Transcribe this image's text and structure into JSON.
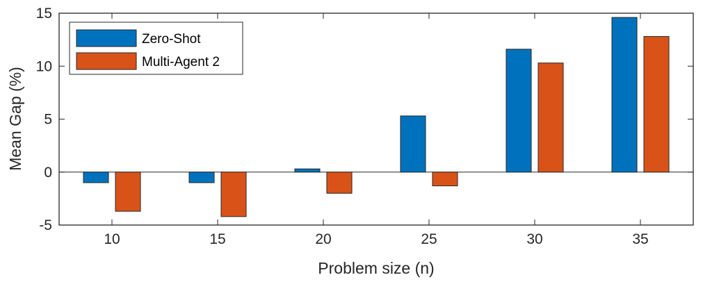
{
  "chart_data": {
    "type": "bar",
    "title": "",
    "xlabel": "Problem size (n)",
    "ylabel": "Mean Gap (%)",
    "categories": [
      "10",
      "15",
      "20",
      "25",
      "30",
      "35"
    ],
    "series": [
      {
        "name": "Zero-Shot",
        "color": "#0072BD",
        "values": [
          -1.0,
          -1.0,
          0.3,
          5.3,
          11.6,
          14.6
        ]
      },
      {
        "name": "Multi-Agent 2",
        "color": "#D95319",
        "values": [
          -3.7,
          -4.2,
          -2.0,
          -1.3,
          10.3,
          12.8
        ]
      }
    ],
    "ylim": [
      -5,
      15
    ],
    "yticks": [
      "-5",
      "0",
      "5",
      "10",
      "15"
    ],
    "grid": false,
    "legend_position": "top-left"
  }
}
